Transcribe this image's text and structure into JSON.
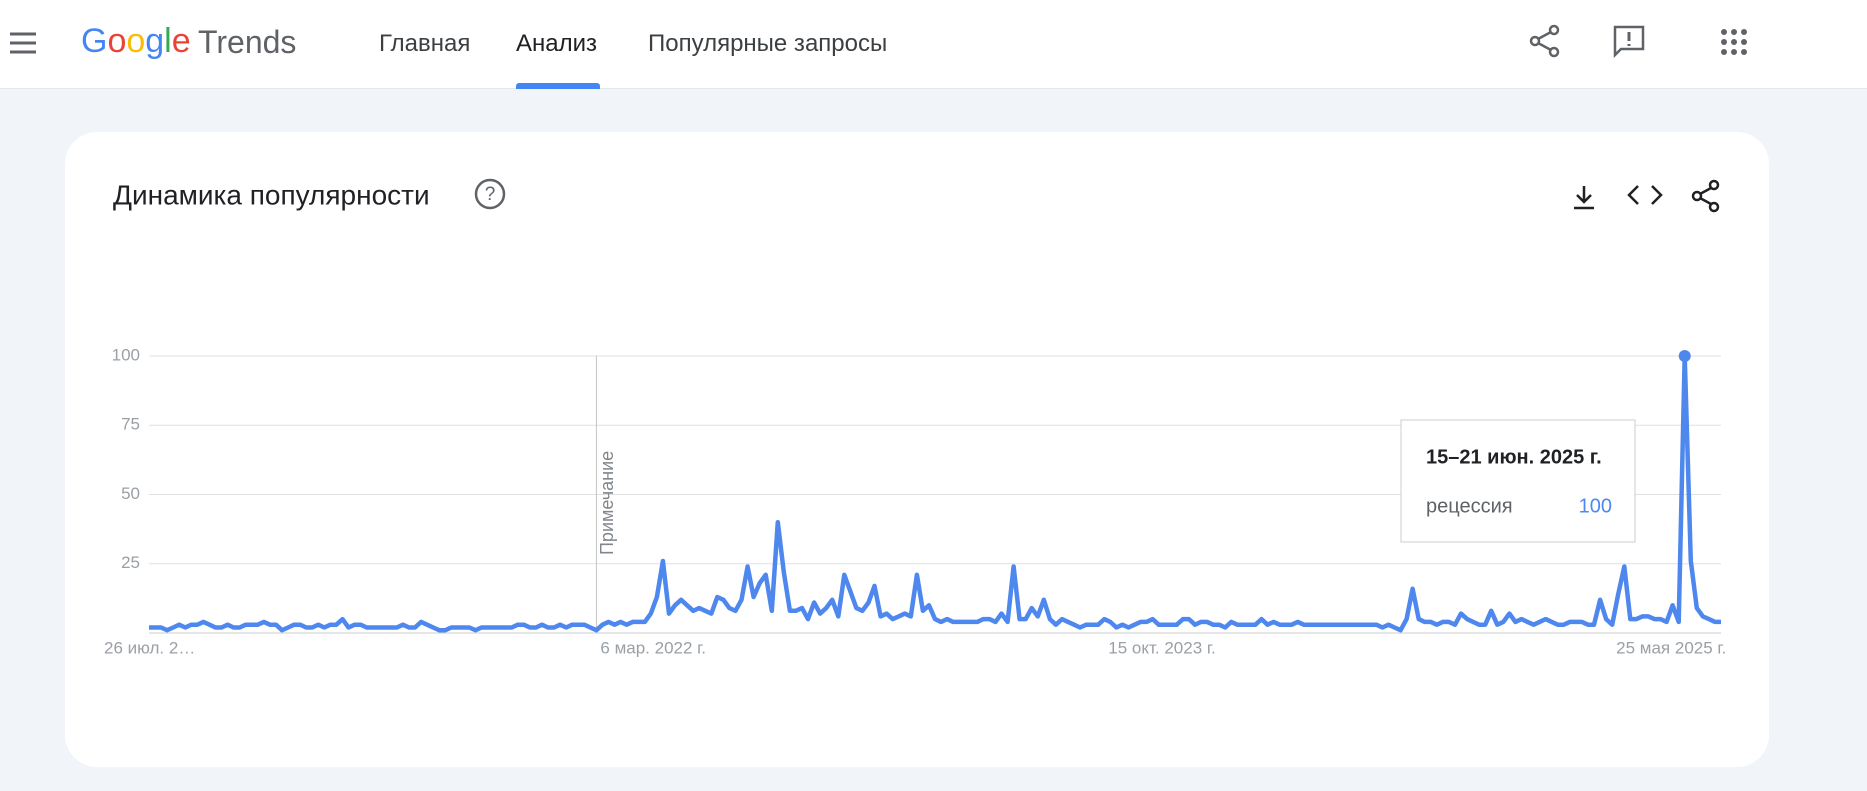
{
  "header": {
    "logo": "Google",
    "product": "Trends",
    "nav": [
      "Главная",
      "Анализ",
      "Популярные запросы"
    ]
  },
  "card": {
    "title": "Динамика популярности"
  },
  "tooltip": {
    "date": "15–21 июн. 2025 г."
  },
  "chart_data": {
    "type": "line",
    "annotation": "Примечание",
    "annotation_index": 74,
    "highlight_index": 254,
    "categories": [
      "26 июл. 2…",
      null,
      null,
      null,
      null,
      null,
      null,
      null,
      null,
      null,
      null,
      null,
      null,
      null,
      null,
      null,
      null,
      null,
      null,
      null,
      null,
      null,
      null,
      null,
      null,
      null,
      null,
      null,
      null,
      null,
      null,
      null,
      null,
      null,
      null,
      null,
      null,
      null,
      null,
      null,
      null,
      null,
      null,
      null,
      null,
      null,
      null,
      null,
      null,
      null,
      null,
      null,
      null,
      null,
      null,
      null,
      null,
      null,
      null,
      null,
      null,
      null,
      null,
      null,
      null,
      null,
      null,
      null,
      null,
      null,
      null,
      null,
      null,
      null,
      "6 мар. 2022 г.",
      null,
      null,
      null,
      null,
      null,
      null,
      null,
      null,
      null,
      null,
      null,
      null,
      null,
      null,
      null,
      null,
      null,
      null,
      null,
      null,
      null,
      null,
      null,
      null,
      null,
      null,
      null,
      null,
      null,
      null,
      null,
      null,
      null,
      null,
      null,
      null,
      null,
      null,
      null,
      null,
      null,
      null,
      null,
      null,
      null,
      null,
      null,
      null,
      null,
      null,
      null,
      null,
      null,
      null,
      null,
      null,
      null,
      null,
      null,
      null,
      null,
      null,
      null,
      null,
      null,
      null,
      null,
      null,
      null,
      null,
      null,
      null,
      null,
      null,
      null,
      null,
      null,
      null,
      null,
      null,
      null,
      null,
      null,
      "15 окт. 2023 г.",
      null,
      null,
      null,
      null,
      null,
      null,
      null,
      null,
      null,
      null,
      null,
      null,
      null,
      null,
      null,
      null,
      null,
      null,
      null,
      null,
      null,
      null,
      null,
      null,
      null,
      null,
      null,
      null,
      null,
      null,
      null,
      null,
      null,
      null,
      null,
      null,
      null,
      null,
      null,
      null,
      null,
      null,
      null,
      null,
      null,
      null,
      null,
      null,
      null,
      null,
      null,
      null,
      null,
      null,
      null,
      null,
      null,
      null,
      null,
      null,
      null,
      null,
      null,
      null,
      null,
      null,
      null,
      null,
      null,
      null,
      null,
      null,
      null,
      null,
      null,
      null,
      null,
      null,
      null,
      null,
      null,
      null,
      null,
      "25 мая 2025 г.",
      null,
      null,
      null,
      null,
      null,
      null,
      null,
      null,
      null,
      null,
      null,
      null,
      null,
      null,
      null,
      null,
      null,
      null
    ],
    "series": [
      {
        "name": "рецессия",
        "color": "#4e88ee",
        "values": [
          2,
          2,
          2,
          1,
          2,
          3,
          2,
          3,
          3,
          4,
          3,
          2,
          2,
          3,
          2,
          2,
          3,
          3,
          3,
          4,
          3,
          3,
          1,
          2,
          3,
          3,
          2,
          2,
          3,
          2,
          3,
          3,
          5,
          2,
          3,
          3,
          2,
          2,
          2,
          2,
          2,
          2,
          3,
          2,
          2,
          4,
          3,
          2,
          1,
          1,
          2,
          2,
          2,
          2,
          1,
          2,
          2,
          2,
          2,
          2,
          2,
          3,
          3,
          2,
          2,
          3,
          2,
          2,
          3,
          2,
          3,
          3,
          3,
          2,
          1,
          3,
          4,
          3,
          4,
          3,
          4,
          4,
          4,
          7,
          13,
          26,
          7,
          10,
          12,
          10,
          8,
          9,
          8,
          7,
          13,
          12,
          9,
          8,
          12,
          24,
          13,
          18,
          21,
          8,
          40,
          22,
          8,
          8,
          9,
          5,
          11,
          7,
          9,
          12,
          6,
          21,
          15,
          9,
          8,
          11,
          17,
          6,
          7,
          5,
          6,
          7,
          6,
          21,
          8,
          10,
          5,
          4,
          5,
          4,
          4,
          4,
          4,
          4,
          5,
          5,
          4,
          7,
          4,
          24,
          5,
          5,
          9,
          6,
          12,
          5,
          3,
          5,
          4,
          3,
          2,
          3,
          3,
          3,
          5,
          4,
          2,
          3,
          2,
          3,
          4,
          4,
          5,
          3,
          3,
          3,
          3,
          5,
          5,
          3,
          4,
          4,
          3,
          3,
          2,
          4,
          3,
          3,
          3,
          3,
          5,
          3,
          4,
          3,
          3,
          3,
          4,
          3,
          3,
          3,
          3,
          3,
          3,
          3,
          3,
          3,
          3,
          3,
          3,
          3,
          2,
          3,
          2,
          1,
          5,
          16,
          5,
          4,
          4,
          3,
          4,
          4,
          3,
          7,
          5,
          4,
          3,
          3,
          8,
          3,
          4,
          7,
          4,
          5,
          4,
          3,
          4,
          5,
          4,
          3,
          3,
          4,
          4,
          4,
          3,
          3,
          12,
          5,
          3,
          14,
          24,
          5,
          5,
          6,
          6,
          5,
          5,
          4,
          10,
          4,
          100,
          26,
          9,
          6,
          5,
          4,
          4
        ]
      }
    ],
    "ylim": [
      0,
      100
    ],
    "yticks": [
      25,
      50,
      75,
      100
    ],
    "grid": true
  }
}
